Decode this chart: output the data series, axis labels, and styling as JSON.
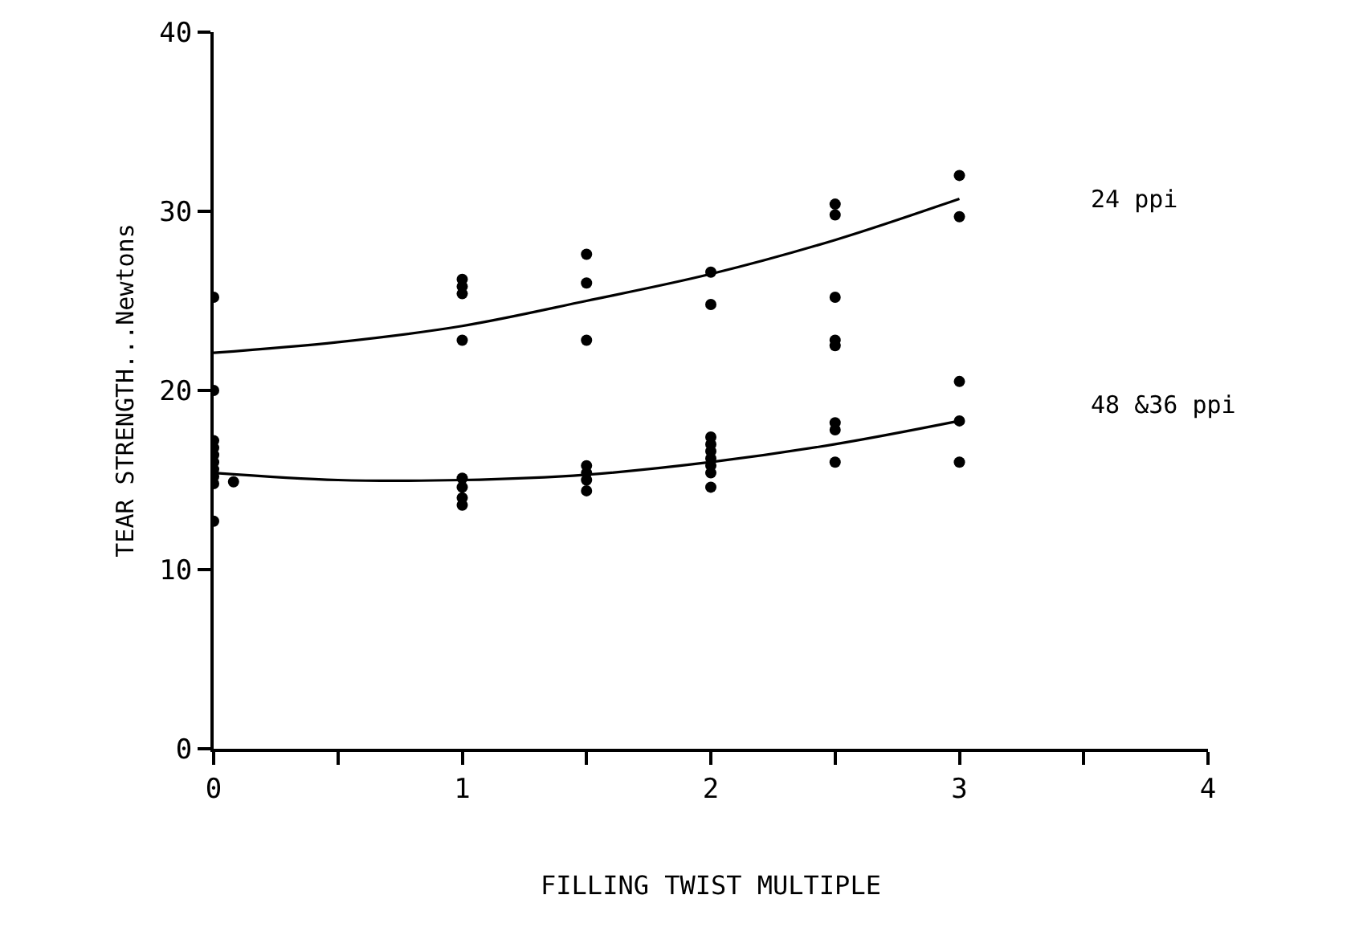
{
  "chart_data": {
    "type": "scatter",
    "xlabel": "FILLING TWIST MULTIPLE",
    "ylabel": "TEAR STRENGTH...Newtons",
    "xlim": [
      0,
      4
    ],
    "xticks": [
      0,
      {
        "value": 0.5,
        "label": null
      },
      1,
      {
        "value": 1.5,
        "label": null
      },
      2,
      {
        "value": 2.5,
        "label": null
      },
      3,
      {
        "value": 3.5,
        "label": null
      },
      4
    ],
    "ylim": [
      0,
      40
    ],
    "yticks": [
      0,
      10,
      20,
      30,
      40
    ],
    "legend": false,
    "marker": "circle",
    "series": [
      {
        "name": "24 ppi",
        "color": "#000000",
        "x": [
          0,
          0,
          1,
          1,
          1,
          1,
          1.5,
          1.5,
          1.5,
          2,
          2,
          2.5,
          2.5,
          2.5,
          2.5,
          2.5,
          3,
          3
        ],
        "values": [
          25.2,
          20,
          26.2,
          25.8,
          25.4,
          22.8,
          27.6,
          26,
          22.8,
          26.6,
          24.8,
          30.4,
          29.8,
          25.2,
          22.8,
          22.5,
          32,
          29.7
        ]
      },
      {
        "color": "#000000",
        "type": "line",
        "marker": "none",
        "x": [
          0,
          0.5,
          1,
          1.5,
          2,
          2.5,
          3
        ],
        "values": [
          22.1,
          22.7,
          23.6,
          25.0,
          26.5,
          28.4,
          30.7
        ]
      },
      {
        "name": "48 &36 ppi",
        "color": "#000000",
        "x": [
          0,
          0,
          0,
          0,
          0,
          0,
          0,
          0,
          0.08,
          1,
          1,
          1,
          1,
          1.5,
          1.5,
          1.5,
          1.5,
          2,
          2,
          2,
          2,
          2,
          2,
          2,
          2.5,
          2.5,
          2.5,
          3,
          3,
          3
        ],
        "values": [
          17.2,
          16.8,
          16.4,
          16,
          15.6,
          15.2,
          14.8,
          12.7,
          14.9,
          15.1,
          14.6,
          14.0,
          13.6,
          15.8,
          15.4,
          15.0,
          14.4,
          17.4,
          17.0,
          16.6,
          16.2,
          15.8,
          15.4,
          14.6,
          18.2,
          17.8,
          16.0,
          20.5,
          18.3,
          16.0
        ]
      },
      {
        "color": "#000000",
        "type": "line",
        "marker": "none",
        "x": [
          0,
          0.5,
          1,
          1.5,
          2,
          2.5,
          3
        ],
        "values": [
          15.4,
          15.0,
          15.0,
          15.3,
          16.0,
          17.0,
          18.3
        ]
      }
    ]
  }
}
